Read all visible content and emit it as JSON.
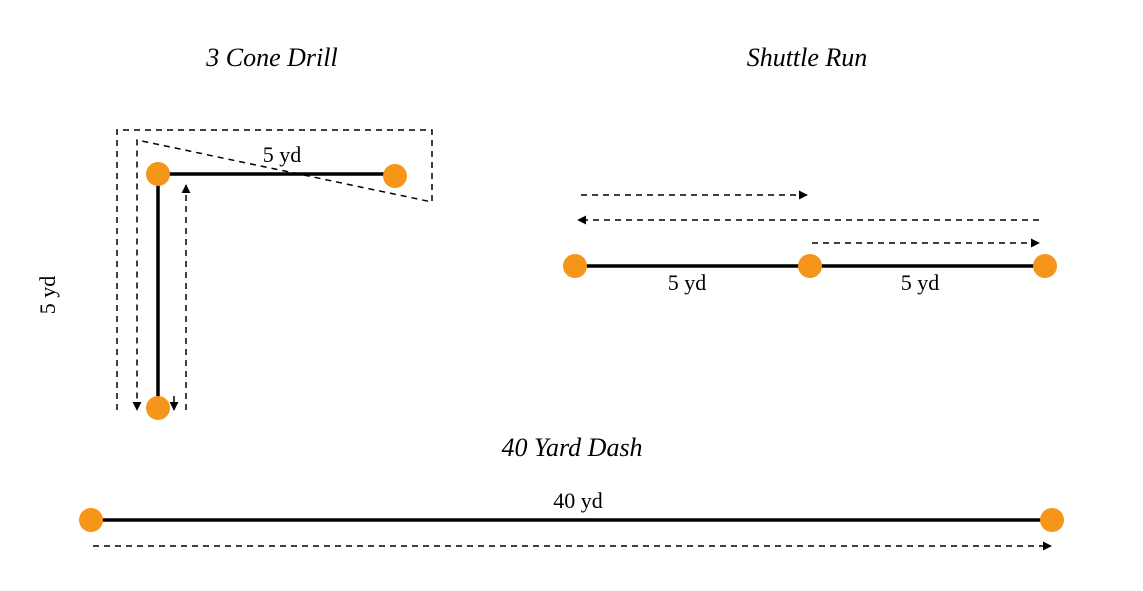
{
  "colors": {
    "cone": "#f5951a",
    "line": "#000000"
  },
  "drills": {
    "three_cone": {
      "title": "3 Cone Drill",
      "label_horizontal": "5 yd",
      "label_vertical": "5 yd"
    },
    "shuttle": {
      "title": "Shuttle Run",
      "label_left": "5 yd",
      "label_right": "5 yd"
    },
    "dash": {
      "title": "40 Yard Dash",
      "label": "40 yd"
    }
  }
}
